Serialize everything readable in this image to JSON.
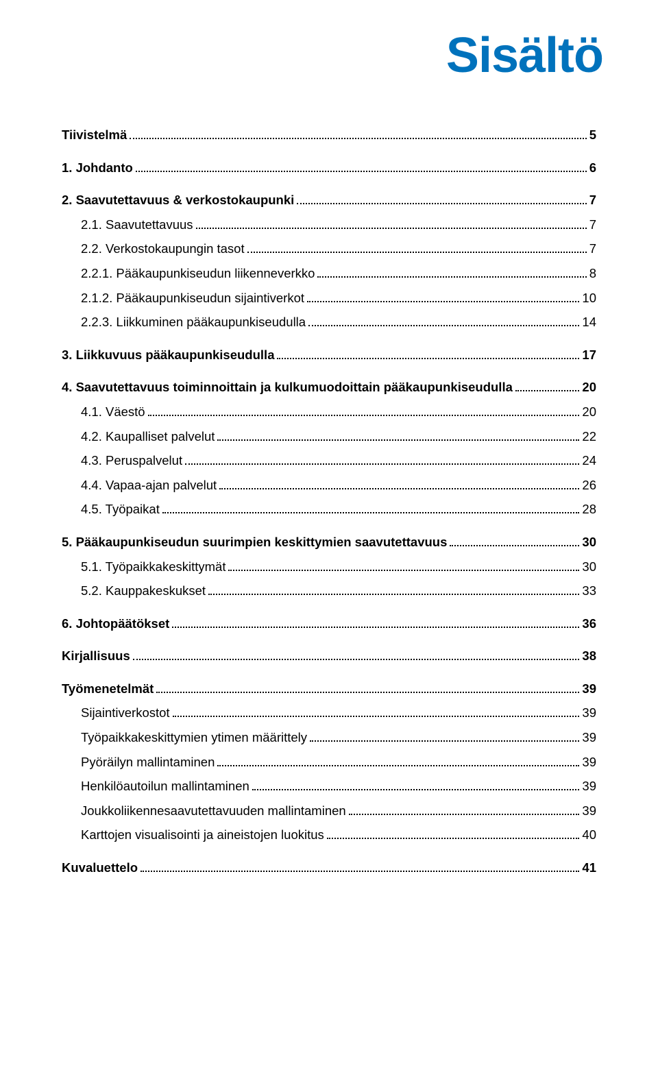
{
  "title": "Sisältö",
  "colors": {
    "title": "#0072bc",
    "text": "#000000",
    "background": "#ffffff"
  },
  "typography": {
    "title_fontsize": 72,
    "title_weight": 900,
    "body_fontsize": 18.5,
    "chapter_weight": 700,
    "entry_weight": 400
  },
  "entries": [
    {
      "label": "Tiivistelmä",
      "page": "5",
      "level": 1,
      "group_end": true
    },
    {
      "label": "1. Johdanto",
      "page": "6",
      "level": 1,
      "group_end": true
    },
    {
      "label": "2. Saavutettavuus & verkostokaupunki",
      "page": "7",
      "level": 1
    },
    {
      "label": "2.1. Saavutettavuus",
      "page": "7",
      "level": 2
    },
    {
      "label": "2.2. Verkostokaupungin tasot",
      "page": "7",
      "level": 2
    },
    {
      "label": "2.2.1. Pääkaupunkiseudun liikenneverkko",
      "page": "8",
      "level": 2
    },
    {
      "label": "2.1.2. Pääkaupunkiseudun sijaintiverkot",
      "page": "10",
      "level": 2
    },
    {
      "label": "2.2.3. Liikkuminen pääkaupunkiseudulla",
      "page": "14",
      "level": 2,
      "group_end": true
    },
    {
      "label": "3. Liikkuvuus pääkaupunkiseudulla",
      "page": "17",
      "level": 1,
      "group_end": true
    },
    {
      "label": "4. Saavutettavuus toiminnoittain ja kulkumuodoittain pääkaupunkiseudulla",
      "page": "20",
      "level": 1
    },
    {
      "label": "4.1. Väestö",
      "page": "20",
      "level": 2
    },
    {
      "label": "4.2. Kaupalliset palvelut",
      "page": "22",
      "level": 2
    },
    {
      "label": "4.3. Peruspalvelut",
      "page": "24",
      "level": 2
    },
    {
      "label": "4.4. Vapaa-ajan palvelut",
      "page": "26",
      "level": 2
    },
    {
      "label": "4.5. Työpaikat",
      "page": "28",
      "level": 2,
      "group_end": true
    },
    {
      "label": "5. Pääkaupunkiseudun suurimpien keskittymien saavutettavuus",
      "page": "30",
      "level": 1
    },
    {
      "label": "5.1. Työpaikkakeskittymät",
      "page": "30",
      "level": 2
    },
    {
      "label": "5.2. Kauppakeskukset",
      "page": "33",
      "level": 2,
      "group_end": true
    },
    {
      "label": "6. Johtopäätökset",
      "page": "36",
      "level": 1,
      "group_end": true
    },
    {
      "label": "Kirjallisuus",
      "page": "38",
      "level": 1,
      "group_end": true
    },
    {
      "label": "Työmenetelmät",
      "page": "39",
      "level": 1
    },
    {
      "label": "Sijaintiverkostot",
      "page": "39",
      "level": 2
    },
    {
      "label": "Työpaikkakeskittymien ytimen määrittely",
      "page": "39",
      "level": 2
    },
    {
      "label": "Pyöräilyn mallintaminen",
      "page": "39",
      "level": 2
    },
    {
      "label": "Henkilöautoilun mallintaminen",
      "page": "39",
      "level": 2
    },
    {
      "label": "Joukkoliikennesaavutettavuuden mallintaminen",
      "page": "39",
      "level": 2
    },
    {
      "label": "Karttojen visualisointi ja aineistojen luokitus",
      "page": "40",
      "level": 2,
      "group_end": true
    },
    {
      "label": "Kuvaluettelo",
      "page": "41",
      "level": 1
    }
  ]
}
